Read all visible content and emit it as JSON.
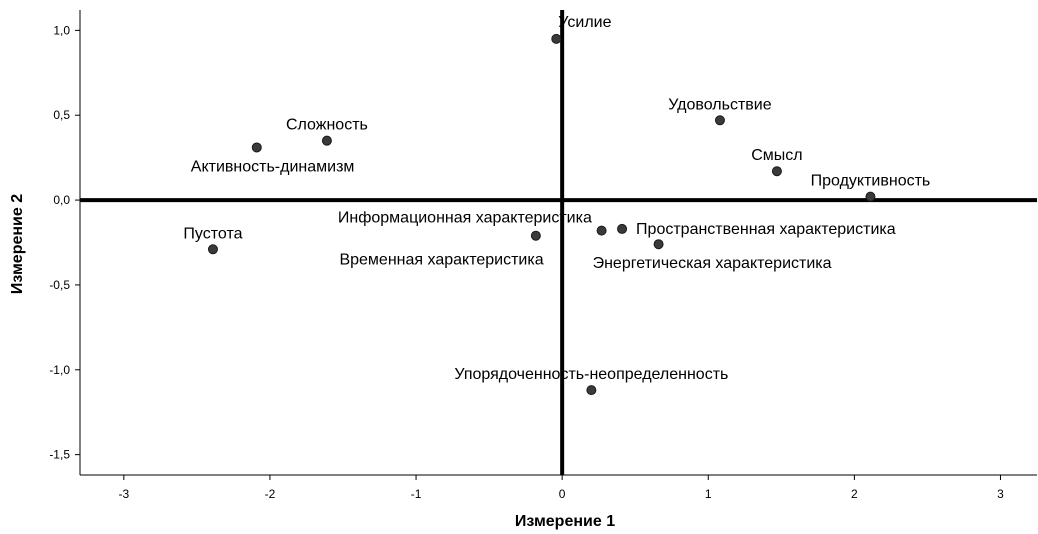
{
  "chart_data": {
    "type": "scatter",
    "xlabel": "Измерение 1",
    "ylabel": "Измерение 2",
    "xlim": [
      -3.3,
      3.25
    ],
    "ylim": [
      -1.62,
      1.12
    ],
    "x_ticks": [
      -3,
      -2,
      -1,
      0,
      1,
      2,
      3
    ],
    "x_tick_labels": [
      "-3",
      "-2",
      "-1",
      "0",
      "1",
      "2",
      "3"
    ],
    "y_ticks": [
      1.0,
      0.5,
      0.0,
      -0.5,
      -1.0,
      -1.5
    ],
    "y_tick_labels": [
      "1,0",
      "0,5",
      "0,0",
      "-0,5",
      "-1,0",
      "-1,5"
    ],
    "reference_lines": {
      "x": 0,
      "y": 0
    },
    "grid": false,
    "points": [
      {
        "label": "Усилие",
        "x": -0.04,
        "y": 0.95,
        "label_pos": "above-right"
      },
      {
        "label": "Удовольствие",
        "x": 1.08,
        "y": 0.47,
        "label_pos": "above"
      },
      {
        "label": "Смысл",
        "x": 1.47,
        "y": 0.17,
        "label_pos": "above"
      },
      {
        "label": "Продуктивность",
        "x": 2.11,
        "y": 0.02,
        "label_pos": "above"
      },
      {
        "label": "Сложность",
        "x": -1.61,
        "y": 0.35,
        "label_pos": "above"
      },
      {
        "label": "Активность-динамизм",
        "x": -2.09,
        "y": 0.31,
        "label_pos": "below-right"
      },
      {
        "label": "Пустота",
        "x": -2.39,
        "y": -0.29,
        "label_pos": "above"
      },
      {
        "label": "Информационная характеристика",
        "x": -0.18,
        "y": -0.21,
        "label_pos": "above-left"
      },
      {
        "label": "Временная характеристика",
        "x": 0.27,
        "y": -0.18,
        "label_pos": "below-left"
      },
      {
        "label": "Пространственная характеристика",
        "x": 0.41,
        "y": -0.17,
        "label_pos": "right"
      },
      {
        "label": "Энергетическая характеристика",
        "x": 0.66,
        "y": -0.26,
        "label_pos": "below-right"
      },
      {
        "label": "Упорядоченность-неопределенность",
        "x": 0.2,
        "y": -1.12,
        "label_pos": "above"
      }
    ]
  }
}
